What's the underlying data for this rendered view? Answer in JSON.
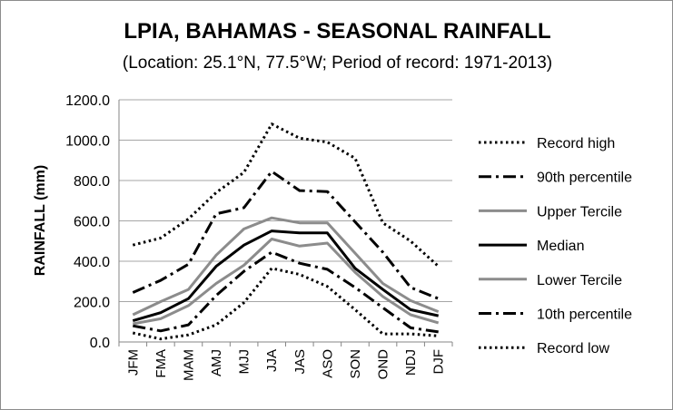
{
  "chart_data": {
    "type": "line",
    "title": "LPIA, BAHAMAS - SEASONAL RAINFALL",
    "subtitle": "(Location: 25.1°N, 77.5°W; Period of record: 1971-2013)",
    "xlabel": "",
    "ylabel": "RAINFALL (mm)",
    "ylim": [
      0,
      1200
    ],
    "ytick_step": 200,
    "ytick_labels": [
      "0.0",
      "200.0",
      "400.0",
      "600.0",
      "800.0",
      "1000.0",
      "1200.0"
    ],
    "grid": true,
    "legend_position": "right",
    "categories": [
      "JFM",
      "FMA",
      "MAM",
      "AMJ",
      "MJJ",
      "JJA",
      "JAS",
      "ASO",
      "SON",
      "OND",
      "NDJ",
      "DJF"
    ],
    "series": [
      {
        "name": "Record high",
        "color": "#000000",
        "style": "dotted",
        "values": [
          480,
          515,
          610,
          740,
          840,
          1080,
          1010,
          990,
          910,
          590,
          500,
          375
        ]
      },
      {
        "name": "90th percentile",
        "color": "#000000",
        "style": "dashdot",
        "values": [
          245,
          305,
          385,
          635,
          665,
          845,
          750,
          745,
          595,
          445,
          270,
          215
        ]
      },
      {
        "name": "Upper Tercile",
        "color": "#8c8c8c",
        "style": "solid",
        "values": [
          135,
          200,
          260,
          430,
          560,
          615,
          590,
          590,
          440,
          290,
          205,
          150
        ]
      },
      {
        "name": "Median",
        "color": "#000000",
        "style": "solid",
        "values": [
          105,
          145,
          215,
          375,
          480,
          550,
          540,
          540,
          365,
          260,
          160,
          130
        ]
      },
      {
        "name": "Lower Tercile",
        "color": "#8c8c8c",
        "style": "solid",
        "values": [
          90,
          115,
          180,
          290,
          380,
          510,
          475,
          490,
          345,
          225,
          135,
          95
        ]
      },
      {
        "name": "10th percentile",
        "color": "#000000",
        "style": "dashdot",
        "values": [
          80,
          55,
          85,
          230,
          350,
          445,
          390,
          360,
          270,
          170,
          70,
          50
        ]
      },
      {
        "name": "Record low",
        "color": "#000000",
        "style": "dotted",
        "values": [
          45,
          15,
          35,
          85,
          195,
          365,
          335,
          275,
          160,
          40,
          40,
          30
        ]
      }
    ]
  }
}
